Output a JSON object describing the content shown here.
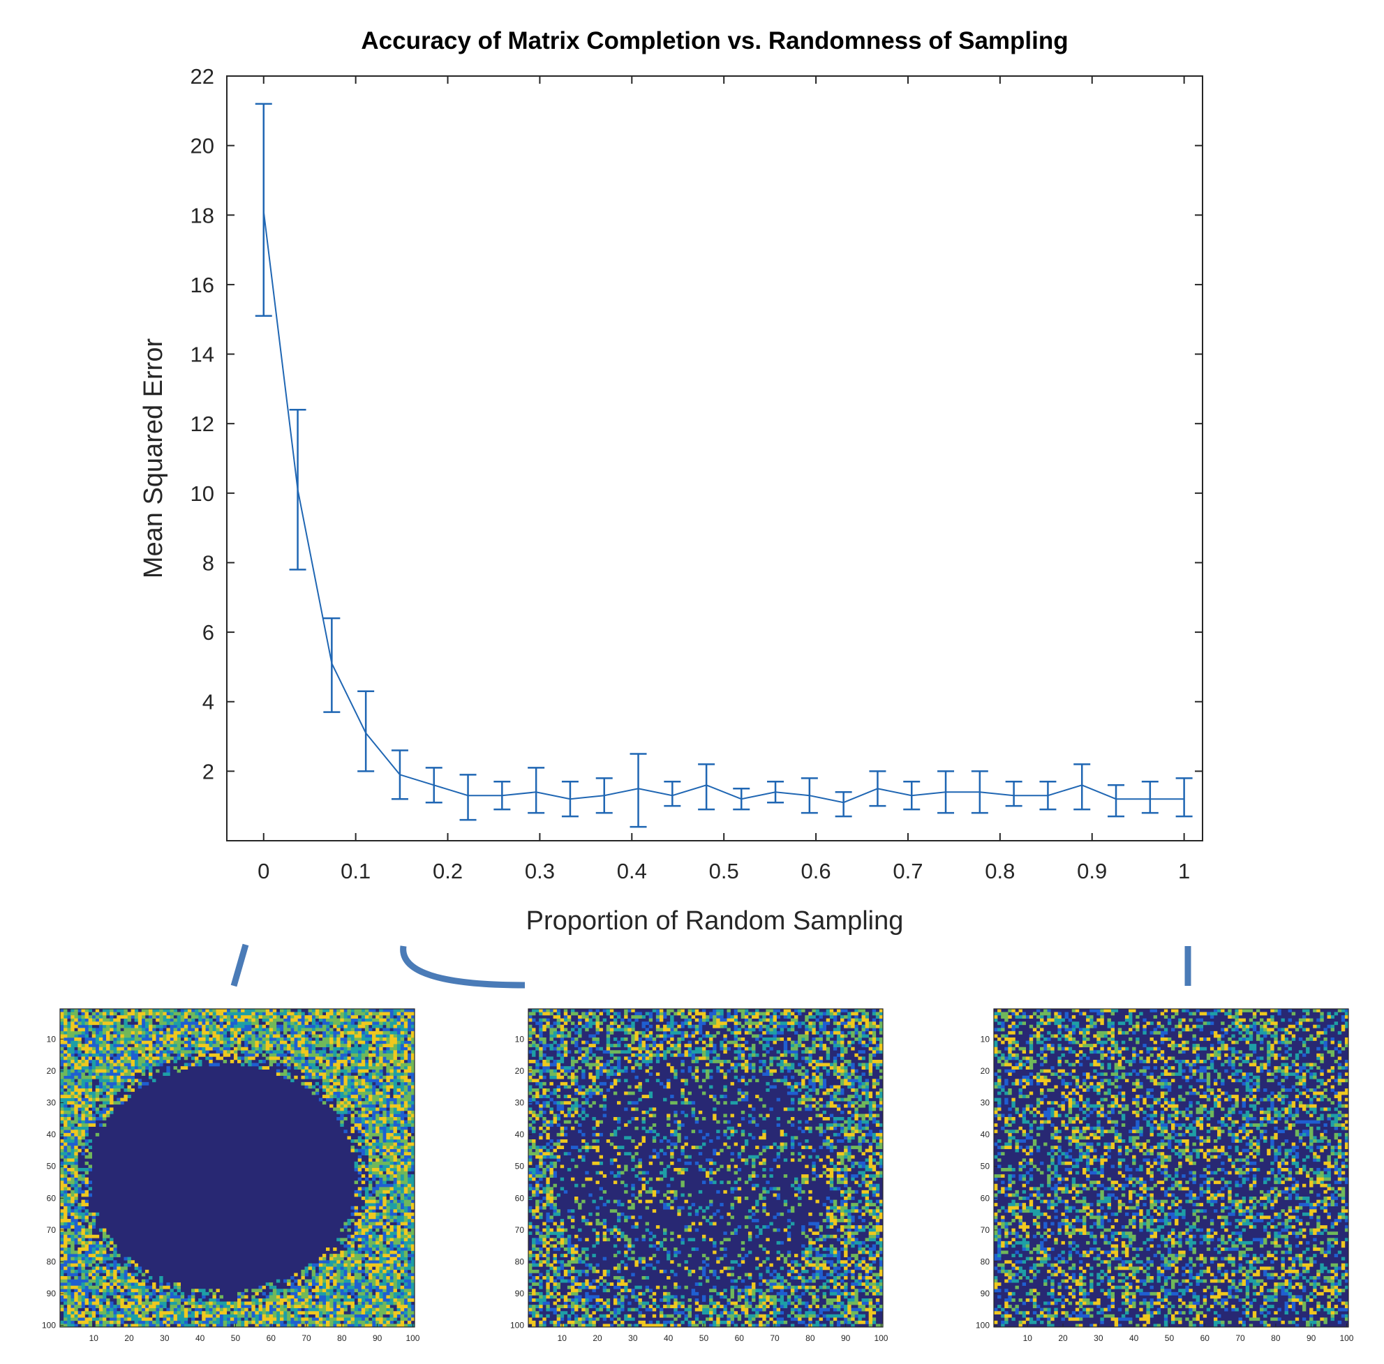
{
  "chart_data": [
    {
      "type": "line",
      "title": "Accuracy of Matrix Completion vs. Randomness of Sampling",
      "xlabel": "Proportion of Random Sampling",
      "ylabel": "Mean Squared Error",
      "xlim": [
        -0.04,
        1.02
      ],
      "ylim": [
        0,
        22
      ],
      "xticks": [
        "0",
        "0.1",
        "0.2",
        "0.3",
        "0.4",
        "0.5",
        "0.6",
        "0.7",
        "0.8",
        "0.9",
        "1"
      ],
      "yticks": [
        "2",
        "4",
        "6",
        "8",
        "10",
        "12",
        "14",
        "16",
        "18",
        "20",
        "22"
      ],
      "grid": false,
      "line_color": "#1f66b3",
      "x": [
        0,
        0.037,
        0.074,
        0.111,
        0.148,
        0.185,
        0.222,
        0.259,
        0.296,
        0.333,
        0.37,
        0.407,
        0.444,
        0.481,
        0.519,
        0.556,
        0.593,
        0.63,
        0.667,
        0.704,
        0.741,
        0.778,
        0.815,
        0.852,
        0.889,
        0.926,
        0.963,
        1.0
      ],
      "y": [
        18.1,
        10.1,
        5.1,
        3.1,
        1.9,
        1.6,
        1.3,
        1.3,
        1.4,
        1.2,
        1.3,
        1.5,
        1.3,
        1.6,
        1.2,
        1.4,
        1.3,
        1.1,
        1.5,
        1.3,
        1.4,
        1.4,
        1.3,
        1.3,
        1.6,
        1.2,
        1.2,
        1.2
      ],
      "err_low": [
        15.1,
        7.8,
        3.7,
        2.0,
        1.2,
        1.1,
        0.6,
        0.9,
        0.8,
        0.7,
        0.8,
        0.4,
        1.0,
        0.9,
        0.9,
        1.1,
        0.8,
        0.7,
        1.0,
        0.9,
        0.8,
        0.8,
        1.0,
        0.9,
        0.9,
        0.7,
        0.8,
        0.7
      ],
      "err_high": [
        21.2,
        12.4,
        6.4,
        4.3,
        2.6,
        2.1,
        1.9,
        1.7,
        2.1,
        1.7,
        1.8,
        2.5,
        1.7,
        2.2,
        1.5,
        1.7,
        1.8,
        1.4,
        2.0,
        1.7,
        2.0,
        2.0,
        1.7,
        1.7,
        2.2,
        1.6,
        1.7,
        1.8
      ]
    },
    {
      "type": "heatmap",
      "pattern": "ellipse-hole",
      "rows": 100,
      "cols": 100,
      "xticks": [
        "10",
        "20",
        "30",
        "40",
        "50",
        "60",
        "70",
        "80",
        "90",
        "100"
      ],
      "yticks": [
        "10",
        "20",
        "30",
        "40",
        "50",
        "60",
        "70",
        "80",
        "90",
        "100"
      ],
      "colors": [
        "#282873",
        "#1f5fd1",
        "#1e9fa6",
        "#70b85a",
        "#f0c81f"
      ]
    },
    {
      "type": "heatmap",
      "pattern": "partial-random",
      "rows": 100,
      "cols": 100,
      "xticks": [
        "10",
        "20",
        "30",
        "40",
        "50",
        "60",
        "70",
        "80",
        "90",
        "100"
      ],
      "yticks": [
        "10",
        "20",
        "30",
        "40",
        "50",
        "60",
        "70",
        "80",
        "90",
        "100"
      ],
      "colors": [
        "#282873",
        "#1f5fd1",
        "#1e9fa6",
        "#70b85a",
        "#f0c81f"
      ]
    },
    {
      "type": "heatmap",
      "pattern": "fully-random",
      "rows": 100,
      "cols": 100,
      "xticks": [
        "10",
        "20",
        "30",
        "40",
        "50",
        "60",
        "70",
        "80",
        "90",
        "100"
      ],
      "yticks": [
        "10",
        "20",
        "30",
        "40",
        "50",
        "60",
        "70",
        "80",
        "90",
        "100"
      ],
      "colors": [
        "#282873",
        "#1f5fd1",
        "#1e9fa6",
        "#70b85a",
        "#f0c81f"
      ]
    }
  ],
  "connector_color": "#4a7bb7"
}
